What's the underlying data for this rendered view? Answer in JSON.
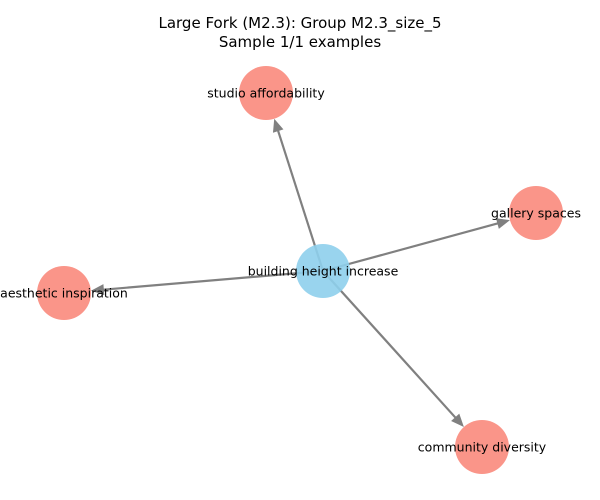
{
  "title": {
    "line1": "Large Fork (M2.3): Group M2.3_size_5",
    "line2": "Sample 1/1 examples"
  },
  "colors": {
    "center_node": "#8ecfec",
    "leaf_node": "#f98a7c",
    "edge": "#808080"
  },
  "graph": {
    "nodes": [
      {
        "id": "center",
        "label": "building height increase",
        "role": "source"
      },
      {
        "id": "studio",
        "label": "studio affordability",
        "role": "target"
      },
      {
        "id": "gallery",
        "label": "gallery spaces",
        "role": "target"
      },
      {
        "id": "aesthetic",
        "label": "aesthetic inspiration",
        "role": "target"
      },
      {
        "id": "community",
        "label": "community diversity",
        "role": "target"
      }
    ],
    "edges": [
      {
        "from": "center",
        "to": "studio",
        "arrow": true
      },
      {
        "from": "center",
        "to": "gallery",
        "arrow": true
      },
      {
        "from": "center",
        "to": "aesthetic",
        "arrow": true
      },
      {
        "from": "center",
        "to": "community",
        "arrow": true
      }
    ]
  }
}
